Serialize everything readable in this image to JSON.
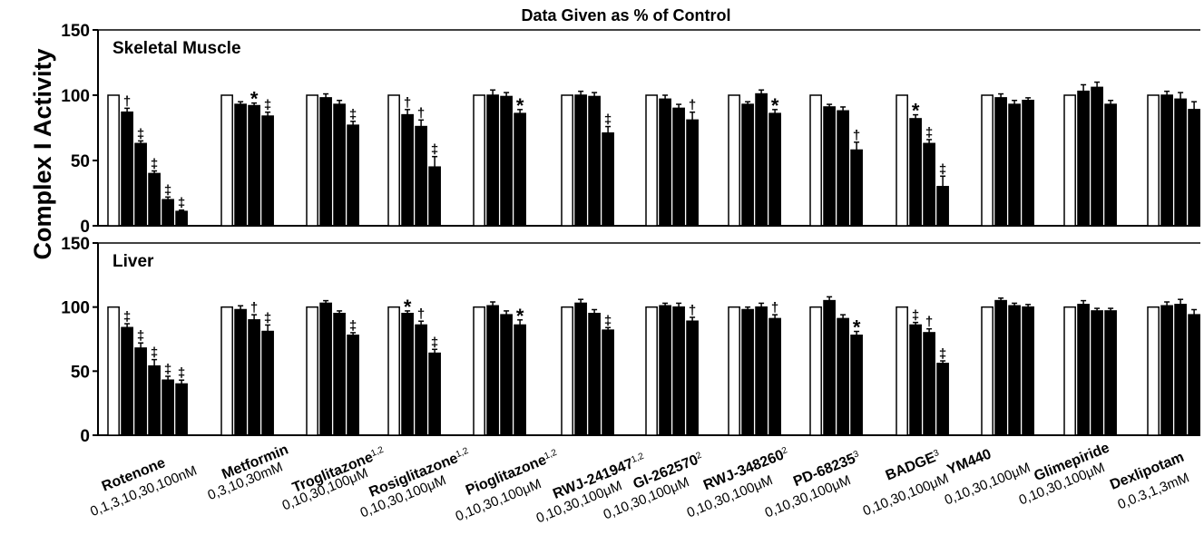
{
  "chart_data": {
    "type": "bar",
    "title": "Data Given as % of Control",
    "ylabel": "Complex I Activity",
    "ylim": [
      0,
      150
    ],
    "yticks": [
      0,
      50,
      100,
      150
    ],
    "grid": false,
    "colors": {
      "control": "#ffffff",
      "treated": "#000000",
      "outline": "#000000"
    },
    "drugs": [
      {
        "name": "Rotenone",
        "sup": "",
        "doses": "0,1,3,10,30,100nM"
      },
      {
        "name": "Metformin",
        "sup": "",
        "doses": "0,3,10,30mM"
      },
      {
        "name": "Troglitazone",
        "sup": "1,2",
        "doses": "0,10,30,100μM"
      },
      {
        "name": "Rosiglitazone",
        "sup": "1,2",
        "doses": "0,10,30,100μM"
      },
      {
        "name": "Pioglitazone",
        "sup": "1,2",
        "doses": "0,10,30,100μM"
      },
      {
        "name": "RWJ-241947",
        "sup": "1,2",
        "doses": "0,10,30,100μM"
      },
      {
        "name": "GI-262570",
        "sup": "2",
        "doses": "0,10,30,100μM"
      },
      {
        "name": "RWJ-348260",
        "sup": "2",
        "doses": "0,10,30,100μM"
      },
      {
        "name": "PD-68235",
        "sup": "3",
        "doses": "0,10,30,100μM"
      },
      {
        "name": "BADGE",
        "sup": "3",
        "doses": "0,10,30,100μM"
      },
      {
        "name": "YM440",
        "sup": "",
        "doses": "0,10,30,100μM"
      },
      {
        "name": "Glimepiride",
        "sup": "",
        "doses": "0,10,30,100μM"
      },
      {
        "name": "Dexlipotam",
        "sup": "",
        "doses": "0,0.3,1,3mM"
      }
    ],
    "panels": [
      {
        "name": "Skeletal Muscle",
        "groups": [
          {
            "values": [
              100,
              87,
              63,
              40,
              20,
              11
            ],
            "errors": [
              0,
              3,
              2,
              2,
              2,
              1
            ],
            "marks": [
              "",
              "†",
              "‡",
              "‡",
              "‡",
              "‡"
            ]
          },
          {
            "values": [
              100,
              93,
              92,
              84
            ],
            "errors": [
              0,
              2,
              2,
              3
            ],
            "marks": [
              "",
              "",
              "*",
              "‡"
            ]
          },
          {
            "values": [
              100,
              98,
              93,
              77
            ],
            "errors": [
              0,
              3,
              3,
              3
            ],
            "marks": [
              "",
              "",
              "",
              "‡"
            ]
          },
          {
            "values": [
              100,
              85,
              76,
              45
            ],
            "errors": [
              0,
              4,
              5,
              8
            ],
            "marks": [
              "",
              "†",
              "†",
              "‡"
            ]
          },
          {
            "values": [
              100,
              100,
              99,
              86
            ],
            "errors": [
              0,
              4,
              3,
              3
            ],
            "marks": [
              "",
              "",
              "",
              "*"
            ]
          },
          {
            "values": [
              100,
              100,
              99,
              71
            ],
            "errors": [
              0,
              3,
              3,
              5
            ],
            "marks": [
              "",
              "",
              "",
              "‡"
            ]
          },
          {
            "values": [
              100,
              97,
              90,
              81
            ],
            "errors": [
              0,
              3,
              3,
              6
            ],
            "marks": [
              "",
              "",
              "",
              "†"
            ]
          },
          {
            "values": [
              100,
              93,
              101,
              86
            ],
            "errors": [
              0,
              2,
              3,
              3
            ],
            "marks": [
              "",
              "",
              "",
              "*"
            ]
          },
          {
            "values": [
              100,
              91,
              88,
              58
            ],
            "errors": [
              0,
              2,
              3,
              6
            ],
            "marks": [
              "",
              "",
              "",
              "†"
            ]
          },
          {
            "values": [
              100,
              82,
              63,
              30
            ],
            "errors": [
              0,
              3,
              3,
              8
            ],
            "marks": [
              "",
              "*",
              "‡",
              "‡"
            ]
          },
          {
            "values": [
              100,
              98,
              93,
              96
            ],
            "errors": [
              0,
              3,
              3,
              2
            ],
            "marks": [
              "",
              "",
              "",
              ""
            ]
          },
          {
            "values": [
              100,
              103,
              106,
              93
            ],
            "errors": [
              0,
              5,
              4,
              3
            ],
            "marks": [
              "",
              "",
              "",
              ""
            ]
          },
          {
            "values": [
              100,
              100,
              97,
              89
            ],
            "errors": [
              0,
              3,
              5,
              6
            ],
            "marks": [
              "",
              "",
              "",
              ""
            ]
          }
        ]
      },
      {
        "name": "Liver",
        "groups": [
          {
            "values": [
              100,
              84,
              68,
              54,
              43,
              40
            ],
            "errors": [
              0,
              3,
              4,
              5,
              3,
              3
            ],
            "marks": [
              "",
              "‡",
              "‡",
              "‡",
              "‡",
              "‡"
            ]
          },
          {
            "values": [
              100,
              98,
              90,
              81
            ],
            "errors": [
              0,
              3,
              4,
              5
            ],
            "marks": [
              "",
              "",
              "†",
              "‡"
            ]
          },
          {
            "values": [
              100,
              103,
              95,
              78
            ],
            "errors": [
              0,
              2,
              2,
              2
            ],
            "marks": [
              "",
              "",
              "",
              "‡"
            ]
          },
          {
            "values": [
              100,
              95,
              86,
              64
            ],
            "errors": [
              0,
              2,
              3,
              3
            ],
            "marks": [
              "",
              "*",
              "†",
              "‡"
            ]
          },
          {
            "values": [
              100,
              101,
              94,
              86
            ],
            "errors": [
              0,
              3,
              3,
              4
            ],
            "marks": [
              "",
              "",
              "",
              "*"
            ]
          },
          {
            "values": [
              100,
              103,
              95,
              82
            ],
            "errors": [
              0,
              3,
              3,
              2
            ],
            "marks": [
              "",
              "",
              "",
              "‡"
            ]
          },
          {
            "values": [
              100,
              101,
              100,
              89
            ],
            "errors": [
              0,
              2,
              3,
              3
            ],
            "marks": [
              "",
              "",
              "",
              "†"
            ]
          },
          {
            "values": [
              100,
              98,
              100,
              91
            ],
            "errors": [
              0,
              2,
              3,
              3
            ],
            "marks": [
              "",
              "",
              "",
              "†"
            ]
          },
          {
            "values": [
              100,
              105,
              91,
              78
            ],
            "errors": [
              0,
              3,
              3,
              3
            ],
            "marks": [
              "",
              "",
              "",
              "*"
            ]
          },
          {
            "values": [
              100,
              86,
              80,
              56
            ],
            "errors": [
              0,
              2,
              3,
              2
            ],
            "marks": [
              "",
              "‡",
              "†",
              "‡"
            ]
          },
          {
            "values": [
              100,
              105,
              101,
              100
            ],
            "errors": [
              0,
              2,
              2,
              2
            ],
            "marks": [
              "",
              "",
              "",
              ""
            ]
          },
          {
            "values": [
              100,
              102,
              97,
              97
            ],
            "errors": [
              0,
              3,
              2,
              2
            ],
            "marks": [
              "",
              "",
              "",
              ""
            ]
          },
          {
            "values": [
              100,
              101,
              102,
              94
            ],
            "errors": [
              0,
              3,
              4,
              4
            ],
            "marks": [
              "",
              "",
              "",
              ""
            ]
          }
        ]
      }
    ]
  }
}
